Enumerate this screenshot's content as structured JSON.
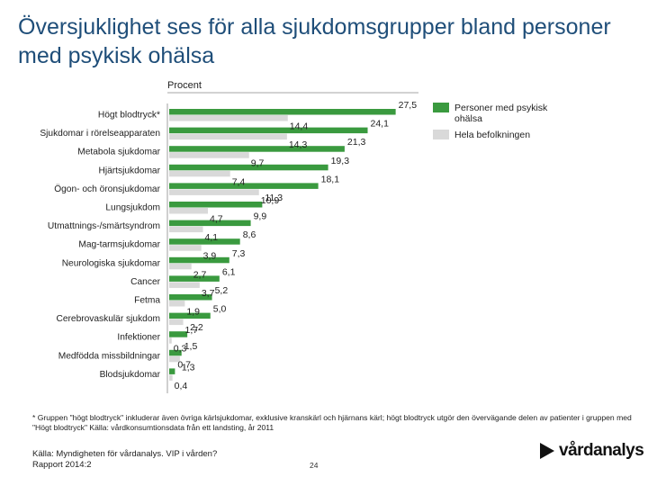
{
  "title": "Översjuklighet ses för alla sjukdomsgrupper bland personer med psykisk ohälsa",
  "colors": {
    "series_mental": "#3a9a3f",
    "series_total": "#d9d9d9",
    "title": "#1f4e79"
  },
  "chart_data": {
    "type": "bar",
    "orientation": "horizontal",
    "unit_label": "Procent",
    "categories": [
      "Högt blodtryck*",
      "Sjukdomar i rörelseapparaten",
      "Metabola sjukdomar",
      "Hjärtsjukdomar",
      "Ögon- och öronsjukdomar",
      "Lungsjukdom",
      "Utmattnings-/smärtsyndrom",
      "Mag-tarmsjukdomar",
      "Neurologiska sjukdomar",
      "Cancer",
      "Fetma",
      "Cerebrovaskulär sjukdom",
      "Infektioner",
      "Medfödda missbildningar",
      "Blodsjukdomar"
    ],
    "series": [
      {
        "name": "Personer med psykisk ohälsa",
        "color": "#3a9a3f",
        "values": [
          27.5,
          24.1,
          21.3,
          19.3,
          18.1,
          11.3,
          9.9,
          8.6,
          7.3,
          6.1,
          5.2,
          5.0,
          2.2,
          1.5,
          0.7
        ],
        "labels": [
          "27,5",
          "24,1",
          "21,3",
          "19,3",
          "18,1",
          "11,3",
          "9,9",
          "8,6",
          "7,3",
          "6,1",
          "5,2",
          "5,0",
          "2,2",
          "1,5",
          "0,7"
        ]
      },
      {
        "name": "Hela befolkningen",
        "color": "#d9d9d9",
        "values": [
          14.4,
          14.3,
          9.7,
          7.4,
          10.9,
          4.7,
          4.1,
          3.9,
          2.7,
          3.7,
          1.9,
          1.7,
          0.3,
          1.3,
          0.4
        ],
        "labels": [
          "14,4",
          "14,3",
          "9,7",
          "7,4",
          "10,9",
          "4,7",
          "4,1",
          "3,9",
          "2,7",
          "3,7",
          "1,9",
          "1,7",
          "0,3",
          "1,3",
          "0,4"
        ]
      }
    ],
    "xlim": [
      0,
      30
    ],
    "legend_position": "top-right"
  },
  "footnote": "* Gruppen \"högt blodtryck\" inkluderar även övriga kärlsjukdomar, exklusive kranskärl och hjärnans kärl; högt blodtryck utgör den övervägande delen av patienter i gruppen med \"Högt blodtryck\" Källa: vårdkonsumtionsdata från ett landsting, år 2011",
  "source_line1": "Källa: Myndigheten för vårdanalys. VIP i vården?",
  "source_line2": "Rapport 2014:2",
  "page_number": "24",
  "logo_text": "vårdanalys"
}
